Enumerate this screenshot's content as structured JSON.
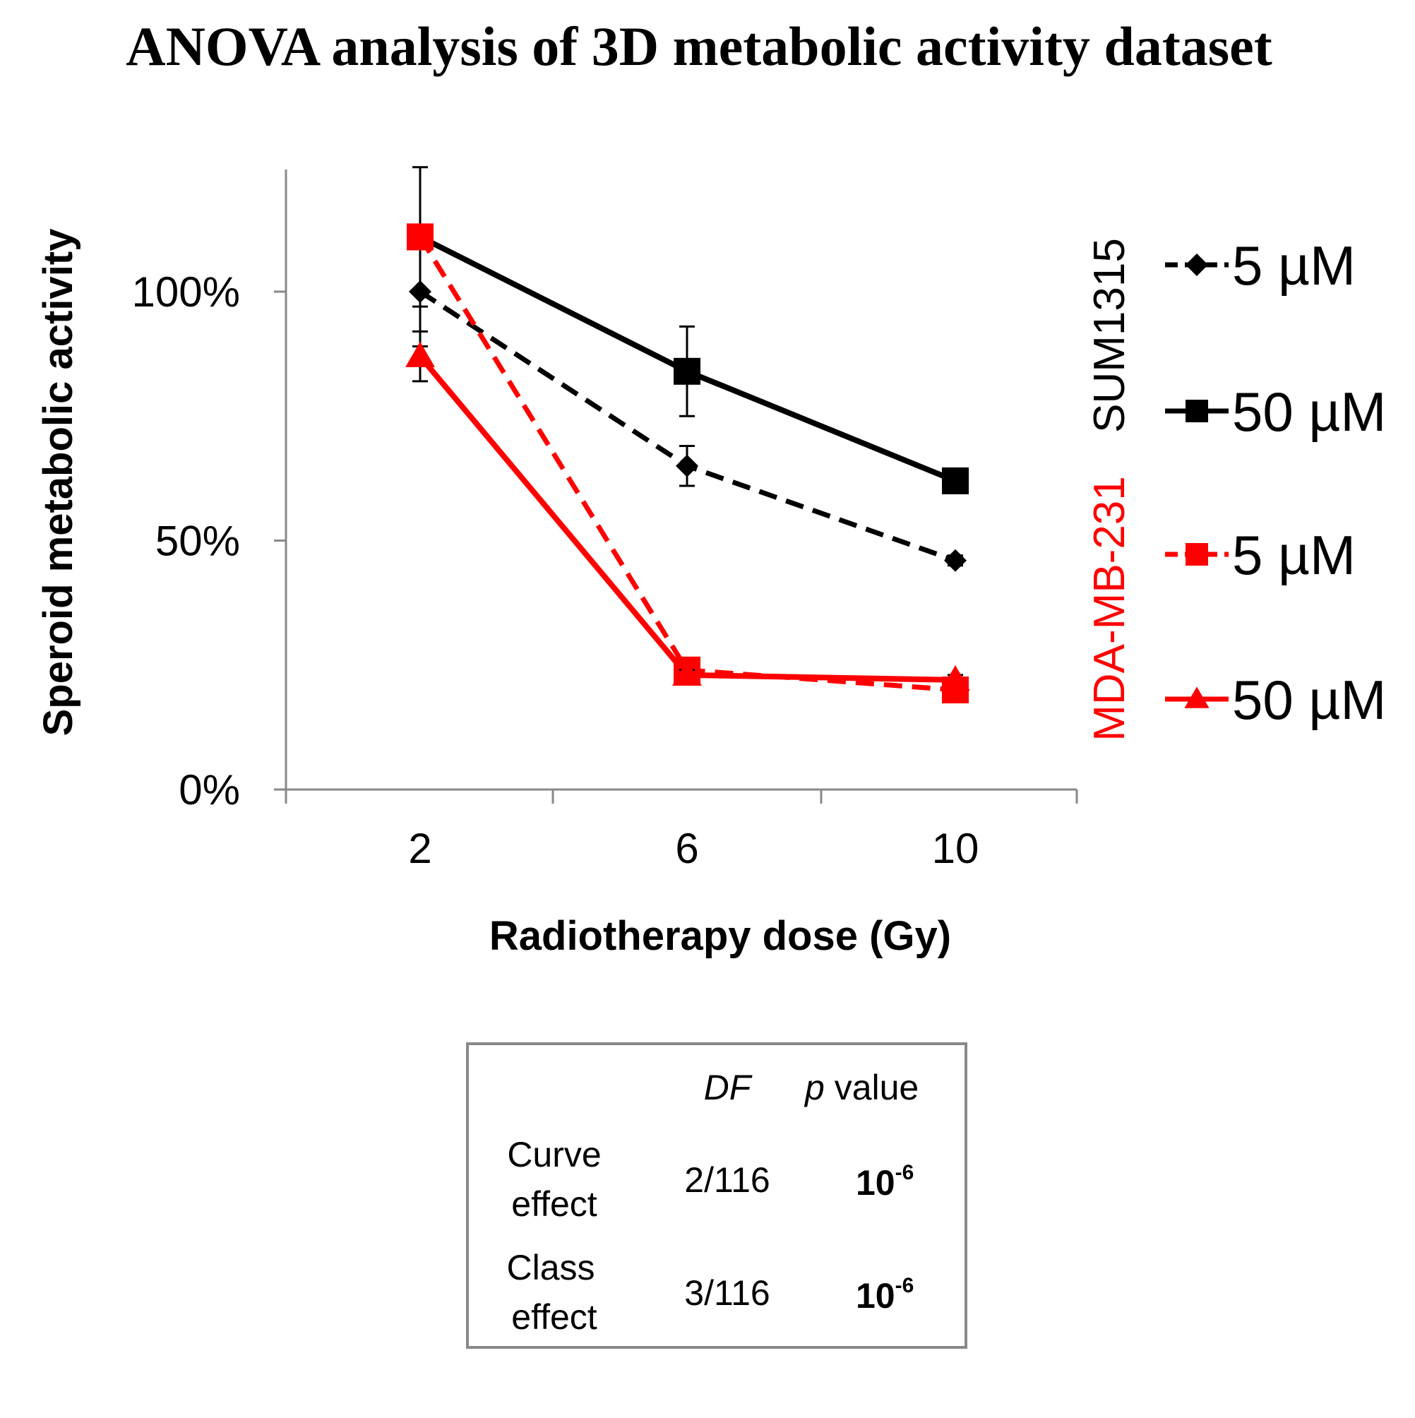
{
  "chart_data": {
    "type": "line",
    "title": "ANOVA analysis of 3D metabolic activity dataset",
    "xlabel": "Radiotherapy dose (Gy)",
    "ylabel": "Speroid metabolic activity",
    "x": [
      2,
      6,
      10
    ],
    "x_tick_labels": [
      "2",
      "6",
      "10"
    ],
    "y_ticks": [
      0,
      50,
      100
    ],
    "y_tick_labels": [
      "0%",
      "50%",
      "100%"
    ],
    "ylim": [
      0,
      125
    ],
    "grid": false,
    "legend_position": "right",
    "series": [
      {
        "name": "5 µM",
        "group": "SUM1315",
        "color": "#000000",
        "dash": true,
        "marker": "diamond",
        "values": [
          100,
          65,
          46
        ],
        "errors": [
          11,
          4,
          1
        ]
      },
      {
        "name": "50 µM",
        "group": "SUM1315",
        "color": "#000000",
        "dash": false,
        "marker": "square",
        "values": [
          111,
          84,
          62
        ],
        "errors": [
          14,
          9,
          2
        ]
      },
      {
        "name": "5 µM",
        "group": "MDA-MB-231",
        "color": "#ff0000",
        "dash": true,
        "marker": "square",
        "values": [
          111,
          24,
          20
        ],
        "errors": [
          2,
          2,
          1
        ]
      },
      {
        "name": "50 µM",
        "group": "MDA-MB-231",
        "color": "#ff0000",
        "dash": false,
        "marker": "triangle",
        "values": [
          87,
          23,
          22
        ],
        "errors": [
          5,
          1,
          1
        ]
      }
    ],
    "groups": [
      {
        "label": "SUM1315",
        "color": "#000000"
      },
      {
        "label": "MDA-MB-231",
        "color": "#ff0000"
      }
    ]
  },
  "anova_table": {
    "headers": {
      "df": "DF",
      "p_italic": "p",
      "p_rest": " value"
    },
    "rows": [
      {
        "effect_line1": "Curve",
        "effect_line2": "effect",
        "df": "2/116",
        "p_base": "10",
        "p_exp": "-6"
      },
      {
        "effect_line1": "Class",
        "effect_line2": "effect",
        "df": "3/116",
        "p_base": "10",
        "p_exp": "-6"
      }
    ]
  }
}
